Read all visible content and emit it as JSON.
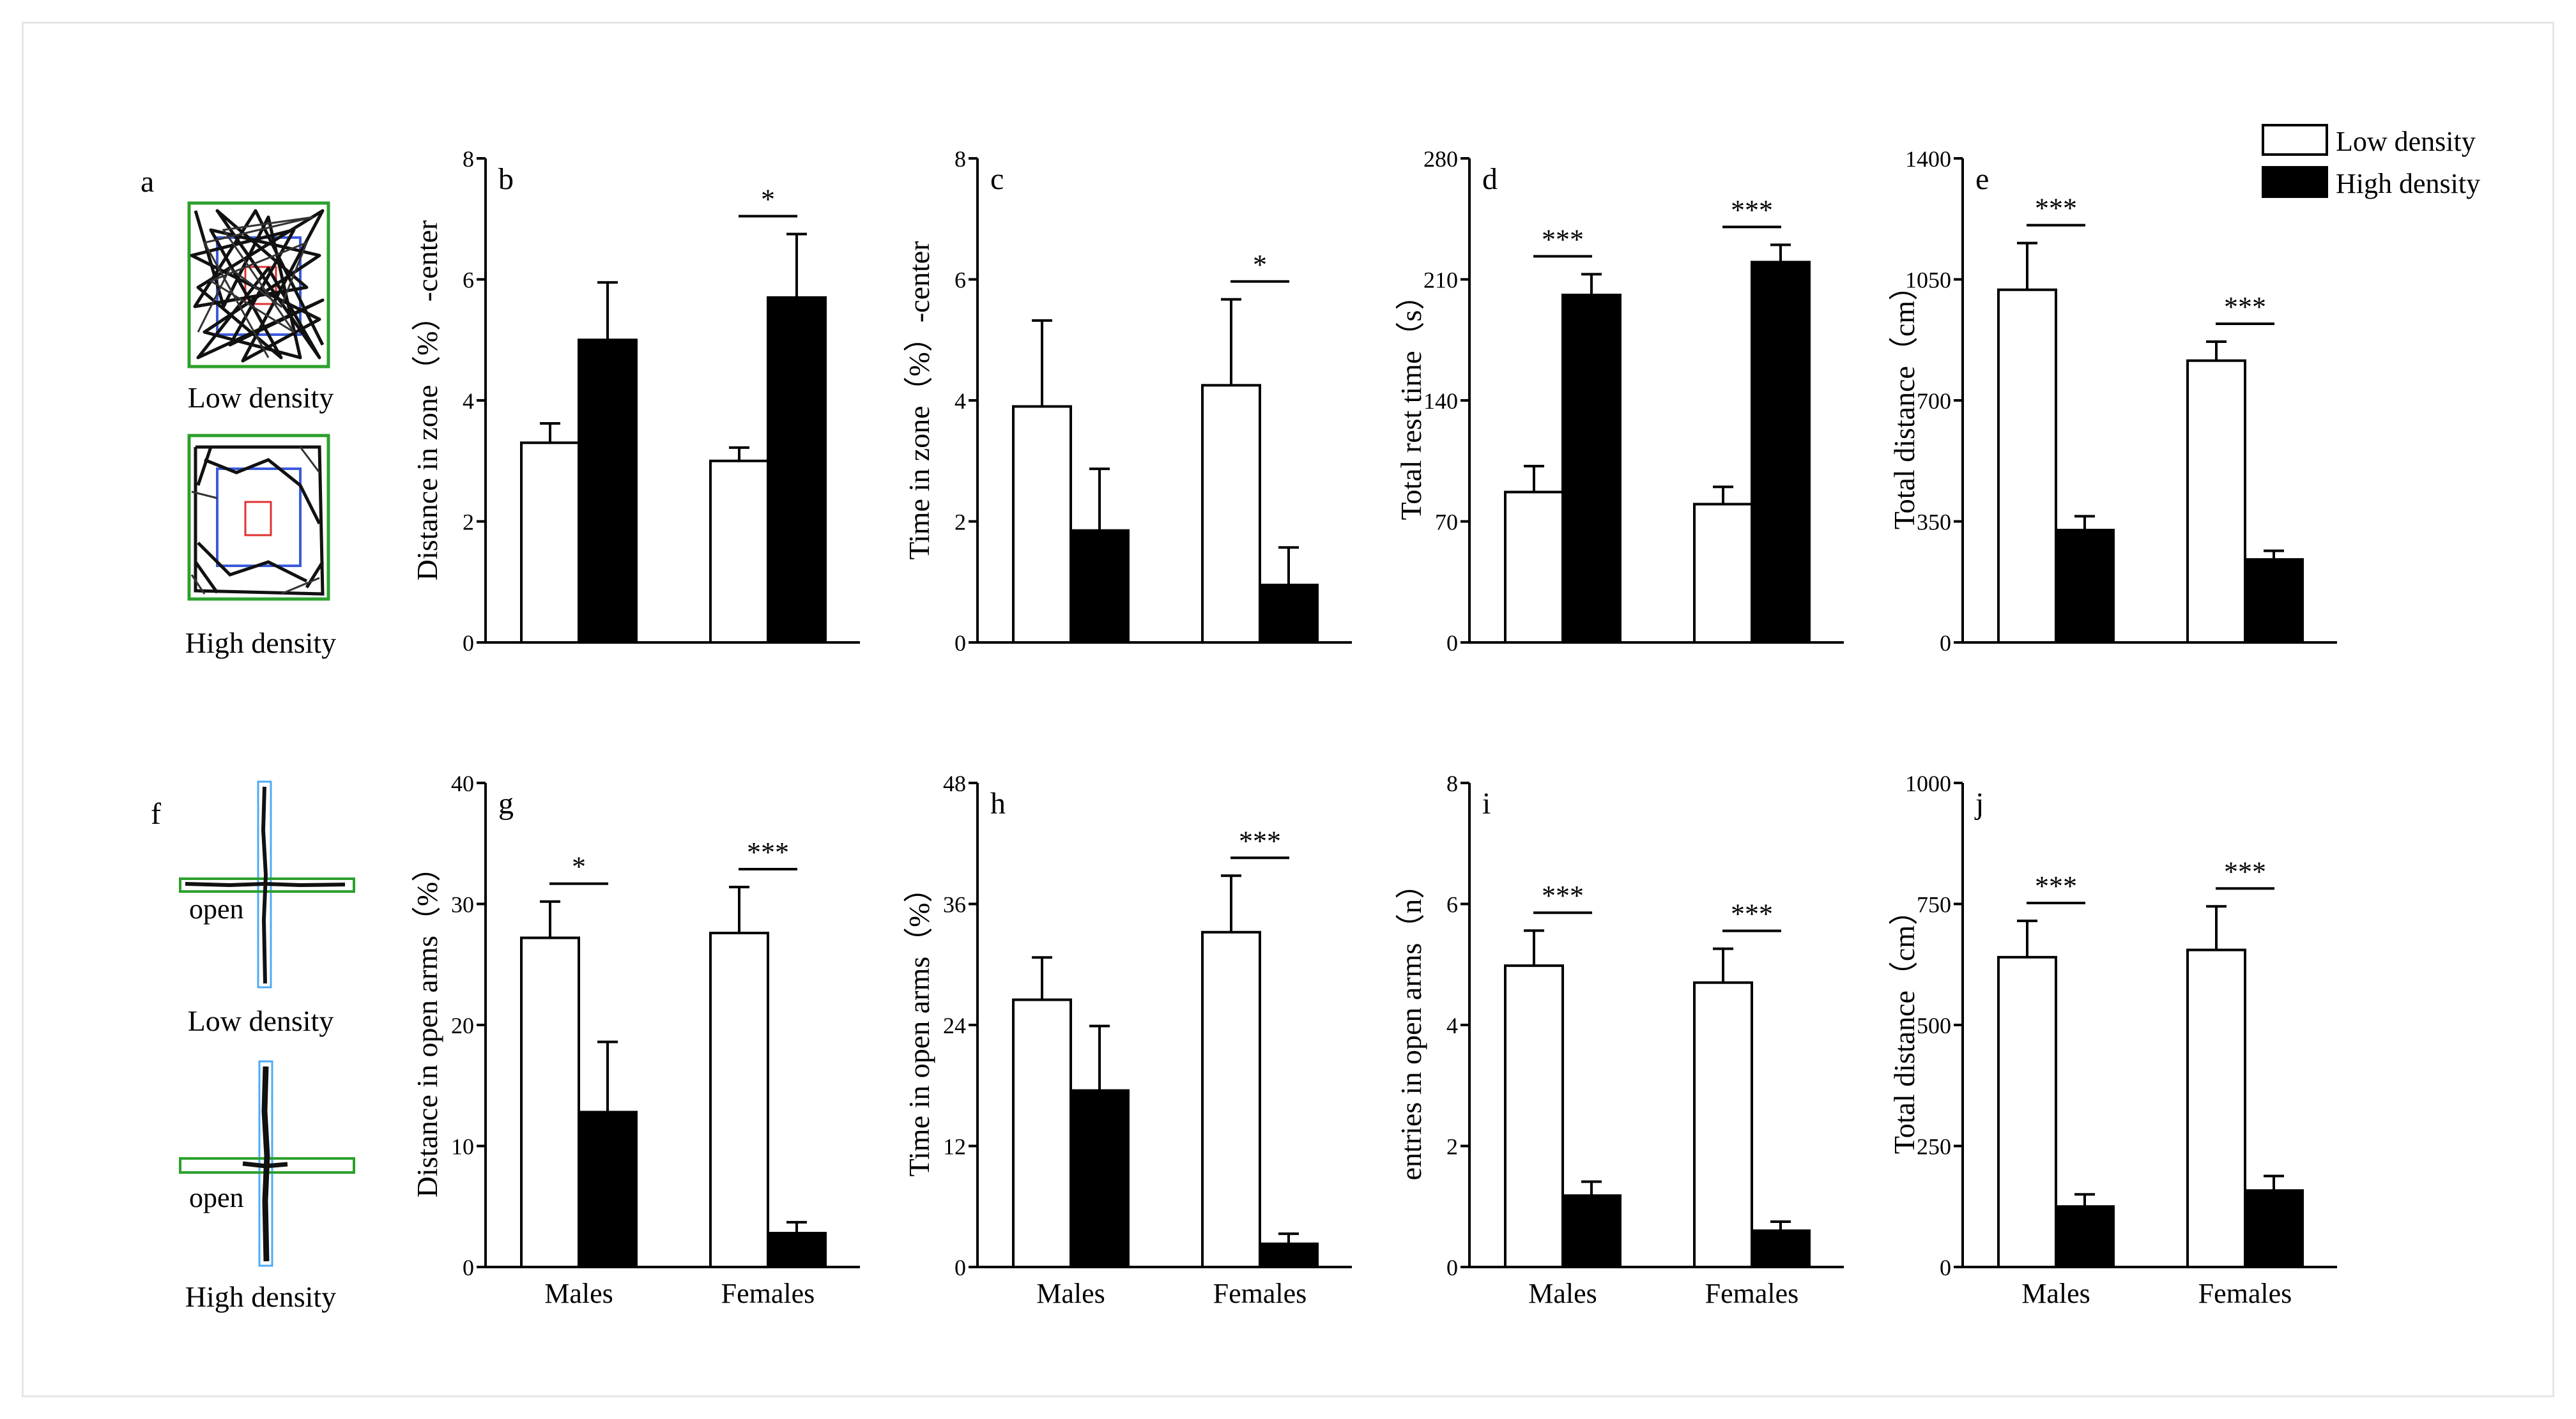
{
  "legend": {
    "items": [
      {
        "label": "Low density",
        "color": "#ffffff"
      },
      {
        "label": "High density",
        "color": "#000000"
      }
    ]
  },
  "tracks": [
    {
      "panel": "a",
      "captions": [
        "Low density",
        "High density"
      ]
    },
    {
      "panel": "f",
      "captions": [
        "Low density",
        "High density"
      ],
      "open_labels": [
        "open",
        "open"
      ]
    }
  ],
  "chart_data": [
    {
      "panel": "b",
      "type": "bar",
      "ylabel": "Distance in zone（%）-center",
      "ylim": [
        0,
        8
      ],
      "yticks": [
        0,
        2,
        4,
        6,
        8
      ],
      "categories": [
        "",
        ""
      ],
      "series": [
        {
          "name": "Low density",
          "values": [
            3.3,
            3.0
          ],
          "errors": [
            0.32,
            0.22
          ]
        },
        {
          "name": "High density",
          "values": [
            5.0,
            5.7
          ],
          "errors": [
            0.95,
            1.05
          ]
        }
      ],
      "annotations": [
        {
          "group": 1,
          "label": "*"
        }
      ]
    },
    {
      "panel": "c",
      "type": "bar",
      "ylabel": "Time in zone（%）-center",
      "ylim": [
        0,
        8
      ],
      "yticks": [
        0,
        2,
        4,
        6,
        8
      ],
      "categories": [
        "",
        ""
      ],
      "series": [
        {
          "name": "Low density",
          "values": [
            3.9,
            4.25
          ],
          "errors": [
            1.42,
            1.42
          ]
        },
        {
          "name": "High density",
          "values": [
            1.85,
            0.95
          ],
          "errors": [
            1.02,
            0.62
          ]
        }
      ],
      "annotations": [
        {
          "group": 1,
          "label": "*"
        }
      ]
    },
    {
      "panel": "d",
      "type": "bar",
      "ylabel": "Total rest time（s）",
      "ylim": [
        0,
        280
      ],
      "yticks": [
        0,
        70,
        140,
        210,
        280
      ],
      "categories": [
        "",
        ""
      ],
      "series": [
        {
          "name": "Low density",
          "values": [
            87,
            80
          ],
          "errors": [
            15,
            10
          ]
        },
        {
          "name": "High density",
          "values": [
            201,
            220
          ],
          "errors": [
            12,
            10
          ]
        }
      ],
      "annotations": [
        {
          "group": 0,
          "label": "***"
        },
        {
          "group": 1,
          "label": "***"
        }
      ]
    },
    {
      "panel": "e",
      "type": "bar",
      "ylabel": "Total distance（cm）",
      "ylim": [
        0,
        1400
      ],
      "yticks": [
        0,
        350,
        700,
        1050,
        1400
      ],
      "categories": [
        "",
        ""
      ],
      "series": [
        {
          "name": "Low density",
          "values": [
            1020,
            815
          ],
          "errors": [
            135,
            55
          ]
        },
        {
          "name": "High density",
          "values": [
            325,
            240
          ],
          "errors": [
            40,
            25
          ]
        }
      ],
      "annotations": [
        {
          "group": 0,
          "label": "***"
        },
        {
          "group": 1,
          "label": "***"
        }
      ]
    },
    {
      "panel": "g",
      "type": "bar",
      "ylabel": "Distance in open arms（%）",
      "ylim": [
        0,
        40
      ],
      "yticks": [
        0,
        10,
        20,
        30,
        40
      ],
      "categories": [
        "Males",
        "Females"
      ],
      "series": [
        {
          "name": "Low density",
          "values": [
            27.2,
            27.6
          ],
          "errors": [
            3.0,
            3.8
          ]
        },
        {
          "name": "High density",
          "values": [
            12.8,
            2.8
          ],
          "errors": [
            5.8,
            0.9
          ]
        }
      ],
      "annotations": [
        {
          "group": 0,
          "label": "*"
        },
        {
          "group": 1,
          "label": "***"
        }
      ]
    },
    {
      "panel": "h",
      "type": "bar",
      "ylabel": "Time in open arms（%）",
      "ylim": [
        0,
        48
      ],
      "yticks": [
        0,
        12,
        24,
        36,
        48
      ],
      "categories": [
        "Males",
        "Females"
      ],
      "series": [
        {
          "name": "Low density",
          "values": [
            26.5,
            33.2
          ],
          "errors": [
            4.2,
            5.6
          ]
        },
        {
          "name": "High density",
          "values": [
            17.5,
            2.3
          ],
          "errors": [
            6.4,
            1.0
          ]
        }
      ],
      "annotations": [
        {
          "group": 1,
          "label": "***"
        }
      ]
    },
    {
      "panel": "i",
      "type": "bar",
      "ylabel": "entries in open arms（n）",
      "ylim": [
        0,
        8
      ],
      "yticks": [
        0,
        2,
        4,
        6,
        8
      ],
      "categories": [
        "Males",
        "Females"
      ],
      "series": [
        {
          "name": "Low density",
          "values": [
            4.98,
            4.7
          ],
          "errors": [
            0.58,
            0.56
          ]
        },
        {
          "name": "High density",
          "values": [
            1.18,
            0.6
          ],
          "errors": [
            0.23,
            0.15
          ]
        }
      ],
      "annotations": [
        {
          "group": 0,
          "label": "***"
        },
        {
          "group": 1,
          "label": "***"
        }
      ]
    },
    {
      "panel": "j",
      "type": "bar",
      "ylabel": "Total distance（cm）",
      "ylim": [
        0,
        1000
      ],
      "yticks": [
        0,
        250,
        500,
        750,
        1000
      ],
      "categories": [
        "Males",
        "Females"
      ],
      "series": [
        {
          "name": "Low density",
          "values": [
            640,
            655
          ],
          "errors": [
            75,
            90
          ]
        },
        {
          "name": "High density",
          "values": [
            125,
            158
          ],
          "errors": [
            25,
            30
          ]
        }
      ],
      "annotations": [
        {
          "group": 0,
          "label": "***"
        },
        {
          "group": 1,
          "label": "***"
        }
      ]
    }
  ]
}
